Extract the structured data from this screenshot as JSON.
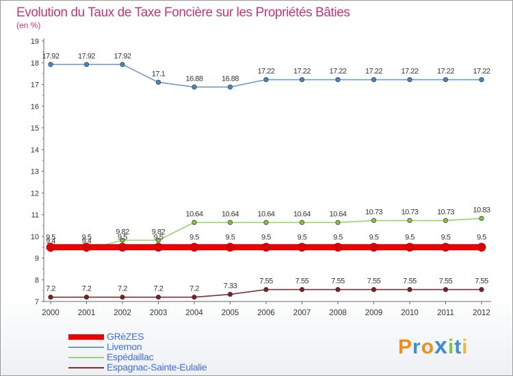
{
  "chart_data": {
    "type": "line",
    "title": "Evolution du Taux de Taxe Foncière sur les Propriétés Bâties",
    "ylabel": "(en %)",
    "xlabel": "",
    "categories": [
      "2000",
      "2001",
      "2002",
      "2003",
      "2004",
      "2005",
      "2006",
      "2007",
      "2008",
      "2009",
      "2010",
      "2011",
      "2012"
    ],
    "ylim": [
      7,
      19
    ],
    "yticks": [
      "7",
      "8",
      "9",
      "10",
      "11",
      "12",
      "13",
      "14",
      "15",
      "16",
      "17",
      "18",
      "19"
    ],
    "series": [
      {
        "name": "Livernon",
        "color": "#6d9ac6",
        "point_color": "#4287c0",
        "values": [
          17.92,
          17.92,
          17.92,
          17.1,
          16.88,
          16.88,
          17.22,
          17.22,
          17.22,
          17.22,
          17.22,
          17.22,
          17.22
        ],
        "labels": [
          "17.92",
          "17.92",
          "17.92",
          "17.1",
          "16.88",
          "16.88",
          "17.22",
          "17.22",
          "17.22",
          "17.22",
          "17.22",
          "17.22",
          "17.22"
        ]
      },
      {
        "name": "Espédaillac",
        "color": "#9bd16e",
        "point_color": "#7fc241",
        "values": [
          9.4,
          9.4,
          9.82,
          9.82,
          10.64,
          10.64,
          10.64,
          10.64,
          10.64,
          10.73,
          10.73,
          10.73,
          10.83
        ],
        "labels": [
          "9.4",
          "9.4",
          "9.82",
          "9.82",
          "10.64",
          "10.64",
          "10.64",
          "10.64",
          "10.64",
          "10.73",
          "10.73",
          "10.73",
          "10.83"
        ]
      },
      {
        "name": "Espagnac-Sainte-Eulalie",
        "color": "#7a2f33",
        "point_color": "#7a1f24",
        "values": [
          7.2,
          7.2,
          7.2,
          7.2,
          7.2,
          7.33,
          7.55,
          7.55,
          7.55,
          7.55,
          7.55,
          7.55,
          7.55
        ],
        "labels": [
          "7.2",
          "7.2",
          "7.2",
          "7.2",
          "7.2",
          "7.33",
          "7.55",
          "7.55",
          "7.55",
          "7.55",
          "7.55",
          "7.55",
          "7.55"
        ]
      },
      {
        "name": "GRèZES",
        "color": "#ee0000",
        "point_color": "#dd0000",
        "values": [
          9.5,
          9.5,
          9.5,
          9.5,
          9.5,
          9.5,
          9.5,
          9.5,
          9.5,
          9.5,
          9.5,
          9.5,
          9.5
        ],
        "labels": [
          "9.5",
          "9.5",
          "9.5",
          "9.5",
          "9.5",
          "9.5",
          "9.5",
          "9.5",
          "9.5",
          "9.5",
          "9.5",
          "9.5",
          "9.5"
        ]
      }
    ],
    "legend_order": [
      "GRèZES",
      "Livernon",
      "Espédaillac",
      "Espagnac-Sainte-Eulalie"
    ]
  },
  "colors": {
    "title": "#c4357f",
    "axis": "#555555",
    "label": "#333333",
    "legend_text": "#3f6fd6"
  },
  "logo": {
    "text": "Proxiti",
    "letters": [
      "P",
      "r",
      "o",
      "x",
      "i",
      "t",
      "i"
    ],
    "colors": [
      "#f08c1b",
      "#3a8fd1",
      "#f08c1b",
      "#3a8fd1",
      "#7fc241",
      "#3a8fd1",
      "#e8b84b"
    ]
  }
}
